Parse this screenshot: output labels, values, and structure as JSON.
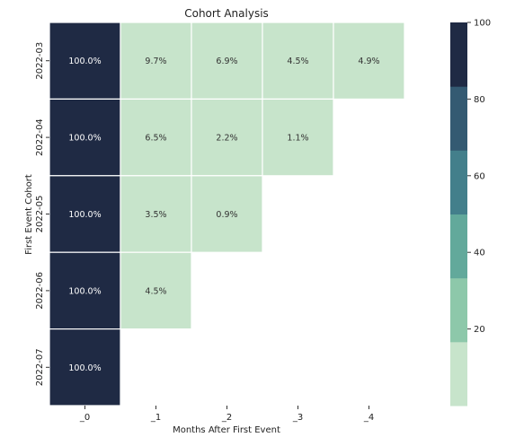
{
  "chart_data": {
    "type": "heatmap",
    "title": "Cohort Analysis",
    "xlabel": "Months After First Event",
    "ylabel": "First Event Cohort",
    "x_categories": [
      "_0",
      "_1",
      "_2",
      "_3",
      "_4"
    ],
    "y_categories": [
      "2022-03",
      "2022-04",
      "2022-05",
      "2022-06",
      "2022-07"
    ],
    "values": [
      [
        100.0,
        9.7,
        6.9,
        4.5,
        4.9
      ],
      [
        100.0,
        6.5,
        2.2,
        1.1,
        null
      ],
      [
        100.0,
        3.5,
        0.9,
        null,
        null
      ],
      [
        100.0,
        4.5,
        null,
        null,
        null
      ],
      [
        100.0,
        null,
        null,
        null,
        null
      ]
    ],
    "cell_labels": [
      [
        "100.0%",
        "9.7%",
        "6.9%",
        "4.5%",
        "4.9%"
      ],
      [
        "100.0%",
        "6.5%",
        "2.2%",
        "1.1%",
        null
      ],
      [
        "100.0%",
        "3.5%",
        "0.9%",
        null,
        null
      ],
      [
        "100.0%",
        "4.5%",
        null,
        null,
        null
      ],
      [
        "100.0%",
        null,
        null,
        null,
        null
      ]
    ],
    "colorbar": {
      "range": [
        0,
        100
      ],
      "ticks": [
        "20",
        "40",
        "60",
        "80",
        "100"
      ],
      "tick_values": [
        20,
        40,
        60,
        80,
        100
      ],
      "colors": [
        "#c7e4cb",
        "#8dc8aa",
        "#62a99b",
        "#437f8b",
        "#345a72",
        "#1f2a44"
      ]
    },
    "grid": false,
    "cell_border_color": "#ffffff",
    "dark_text_color": "#333333",
    "light_text_color": "#ffffff"
  }
}
